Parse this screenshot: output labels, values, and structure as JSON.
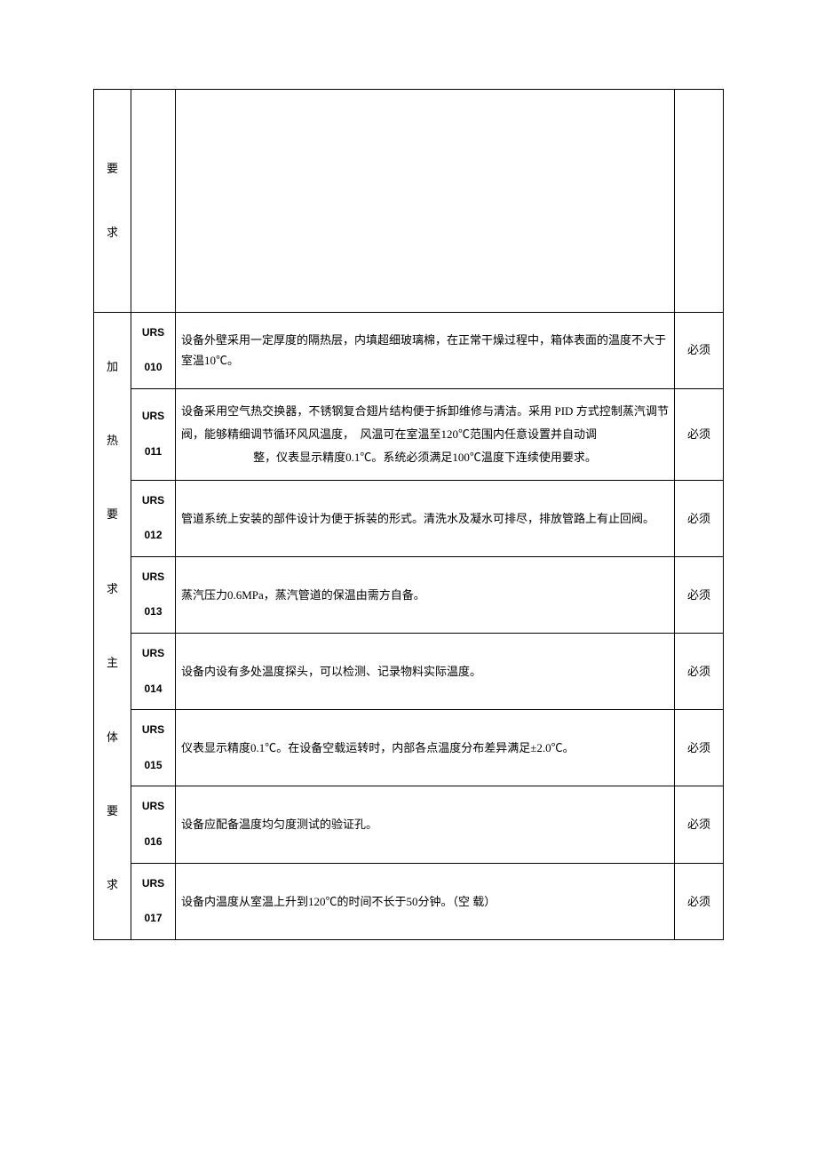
{
  "category_col1": {
    "part1": "要",
    "part2": "求",
    "combined": "加热要求主体要求"
  },
  "category_chars": [
    "要",
    "求",
    "加",
    "热",
    "要",
    "求",
    "主",
    "体",
    "要",
    "求"
  ],
  "rows": [
    {
      "id_line1": "URS",
      "id_line2": "010",
      "desc": "设备外壁采用一定厚度的隔热层，内填超细玻璃棉，在正常干燥过程中，箱体表面的温度不大于室温10℃。",
      "req": "必须"
    },
    {
      "id_line1": "URS",
      "id_line2": "011",
      "desc": "设备采用空气热交换器，不锈钢复合翅片结构便于拆卸维修与清洁。采用 PID 方式控制蒸汽调节阀，能够精细调节循环风风温度，  风温可在室温至120℃范围内任意设置并自动调整，仪表显示精度0.1℃。系统必须满足100℃温度下连续使用要求。",
      "req": "必须"
    },
    {
      "id_line1": "URS",
      "id_line2": "012",
      "desc": "管道系统上安装的部件设计为便于拆装的形式。清洗水及凝水可排尽，排放管路上有止回阀。",
      "req": "必须"
    },
    {
      "id_line1": "URS",
      "id_line2": "013",
      "desc": "蒸汽压力0.6MPa，蒸汽管道的保温由需方自备。",
      "req": "必须"
    },
    {
      "id_line1": "URS",
      "id_line2": "014",
      "desc": "设备内设有多处温度探头，可以检测、记录物料实际温度。",
      "req": "必须"
    },
    {
      "id_line1": "URS",
      "id_line2": "015",
      "desc": "仪表显示精度0.1℃。在设备空载运转时，内部各点温度分布差异满足±2.0℃。",
      "req": "必须"
    },
    {
      "id_line1": "URS",
      "id_line2": "016",
      "desc": "设备应配备温度均匀度测试的验证孔。",
      "req": "必须"
    },
    {
      "id_line1": "URS",
      "id_line2": "017",
      "desc": "设备内温度从室温上升到120℃的时间不长于50分钟。（空  载）",
      "req": "必须"
    }
  ],
  "styling": {
    "border_color": "#000000",
    "background_color": "#ffffff",
    "font_family": "SimSun",
    "base_font_size": 13,
    "id_font_family": "Arial",
    "id_font_weight": "bold"
  }
}
